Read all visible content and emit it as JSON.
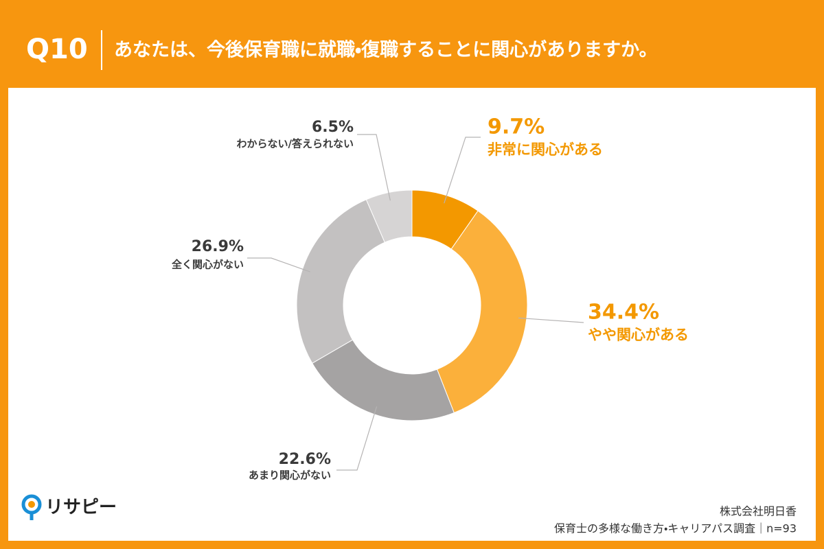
{
  "header": {
    "number": "Q10",
    "title": "あなたは、今後保育職に就職・復職することに関心がありますか。"
  },
  "chart_data": {
    "type": "pie",
    "donut": true,
    "categories": [
      "非常に関心がある",
      "やや関心がある",
      "あまり関心がない",
      "全く関心がない",
      "わからない/答えられない"
    ],
    "values": [
      9.7,
      34.4,
      22.6,
      26.9,
      6.5
    ],
    "value_labels": [
      "9.7%",
      "34.4%",
      "22.6%",
      "26.9%",
      "6.5%"
    ],
    "colors": [
      "#f39800",
      "#fbb03b",
      "#a5a3a3",
      "#c3c1c1",
      "#d6d4d4"
    ]
  },
  "footer": {
    "logo": "リサピー",
    "company": "株式会社明日香",
    "survey": "保育士の多様な働き方・キャリアパス調査｜n=93"
  }
}
